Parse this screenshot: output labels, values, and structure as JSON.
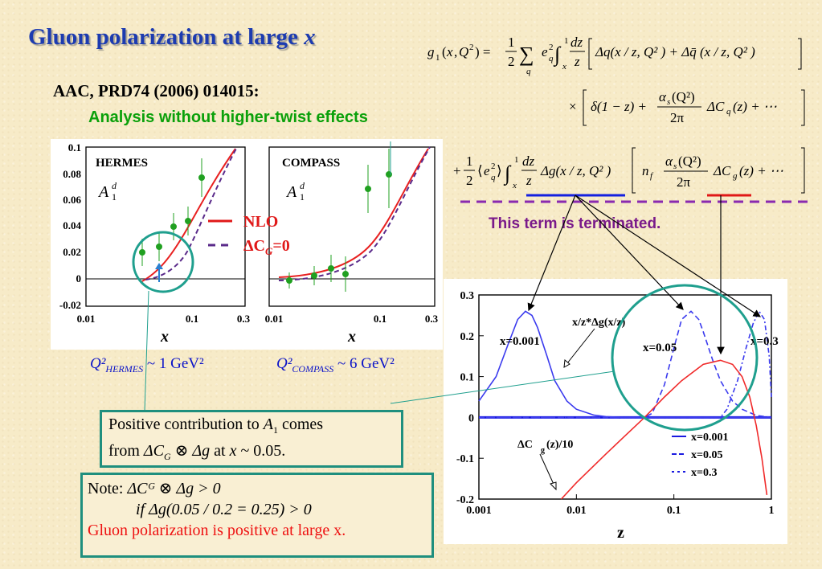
{
  "slide": {
    "title": "Gluon polarization at large",
    "title_var": "x",
    "reference": "AAC, PRD74 (2006) 014015:",
    "subtitle": "Analysis without higher-twist effects",
    "terminated": "This term is terminated."
  },
  "equation": {
    "g1_lhs": "g₁(x,Q²) =",
    "line1_rhs": "Δq(x/z,Q²) + Δq̄(x/z,Q²)",
    "line2_rhs": "× [ δ(1−z) + αₛ(Q²)/2π ΔC_q(z) + ··· ]",
    "line3_lhs": "+ ½⟨e_q²⟩∫ dz/z Δg(x/z,Q²)",
    "line3_rhs": "n_f αₛ(Q²)/2π ΔC_g(z) + ···"
  },
  "left_plot": {
    "y_ticks": [
      "0.1",
      "0.08",
      "0.06",
      "0.04",
      "0.02",
      "0",
      "-0.02"
    ],
    "hermes_label": "HERMES",
    "compass_label": "COMPASS",
    "a1_label": "A",
    "a1_sup": "d",
    "a1_sub": "1",
    "x_ticks_hermes": [
      "0.01",
      "0.1",
      "0.3"
    ],
    "x_ticks_compass": [
      "0.01",
      "0.1",
      "0.3"
    ],
    "x_label": "x",
    "legend_nlo": "NLO",
    "legend_dcg": "ΔC",
    "legend_dcg_sub": "G",
    "legend_dcg_val": "=0",
    "q2_hermes": "Q²",
    "q2_hermes_sub": "HERMES",
    "q2_hermes_val": "~ 1 GeV²",
    "q2_compass": "Q²",
    "q2_compass_sub": "COMPASS",
    "q2_compass_val": "~ 6 GeV²",
    "colors": {
      "nlo": "#e82020",
      "dcg0": "#5a2a8a",
      "data": "#20a020"
    }
  },
  "chart_data": {
    "type": "line",
    "x_scale": "log",
    "xlim": [
      0.001,
      1
    ],
    "ylim": [
      -0.2,
      0.3
    ],
    "x_ticks": [
      "0.001",
      "0.01",
      "0.1",
      "1"
    ],
    "y_ticks": [
      "0.3",
      "0.2",
      "0.1",
      "0",
      "-0.1",
      "-0.2"
    ],
    "xlabel": "z",
    "annotations": {
      "dg_curve": "x/z*Δg(x/z)",
      "dcg_curve": "ΔC",
      "dcg_sub": "g",
      "dcg_tail": "(z)/10",
      "x0001": "x=0.001",
      "x005": "x=0.05",
      "x03": "x=0.3"
    },
    "legend": [
      "x=0.001",
      "x=0.05",
      "x=0.3"
    ],
    "series": [
      {
        "name": "x=0.001",
        "style": "solid",
        "color": "#3a3aee",
        "x": [
          0.001,
          0.0015,
          0.002,
          0.0025,
          0.003,
          0.0035,
          0.004,
          0.005,
          0.006,
          0.008,
          0.01,
          0.015,
          0.02,
          0.03,
          0.05,
          0.1,
          1
        ],
        "y": [
          0.04,
          0.1,
          0.18,
          0.24,
          0.26,
          0.25,
          0.22,
          0.15,
          0.09,
          0.04,
          0.02,
          0.006,
          0.002,
          0.0,
          0.0,
          0.0,
          0.0
        ]
      },
      {
        "name": "x=0.05",
        "style": "dashed",
        "color": "#3a3aee",
        "x": [
          0.001,
          0.05,
          0.06,
          0.08,
          0.1,
          0.12,
          0.15,
          0.18,
          0.2,
          0.25,
          0.3,
          0.4,
          0.5,
          0.7,
          1
        ],
        "y": [
          0.0,
          0.0,
          0.01,
          0.08,
          0.17,
          0.24,
          0.26,
          0.24,
          0.21,
          0.14,
          0.09,
          0.04,
          0.02,
          0.005,
          0.0
        ],
        "level_at_z005": 0.0
      },
      {
        "name": "x=0.3",
        "style": "dashdot",
        "color": "#3a3aee",
        "x": [
          0.001,
          0.3,
          0.35,
          0.45,
          0.55,
          0.65,
          0.75,
          0.85,
          0.95,
          1
        ],
        "y": [
          0.0,
          0.0,
          0.02,
          0.09,
          0.17,
          0.23,
          0.26,
          0.24,
          0.15,
          0.05
        ]
      },
      {
        "name": "ΔCg(z)/10",
        "style": "solid",
        "color": "#f02a2a",
        "x": [
          0.007,
          0.01,
          0.02,
          0.03,
          0.05,
          0.08,
          0.12,
          0.2,
          0.3,
          0.4,
          0.5,
          0.6,
          0.7,
          0.8,
          0.9
        ],
        "y": [
          -0.2,
          -0.16,
          -0.09,
          -0.05,
          0.0,
          0.05,
          0.09,
          0.13,
          0.14,
          0.13,
          0.1,
          0.05,
          -0.02,
          -0.1,
          -0.19
        ]
      }
    ]
  },
  "notes": {
    "box1_line1": "Positive contribution to",
    "box1_a": "A",
    "box1_a_sub": "1",
    "box1_comes": "comes",
    "box1_line2a": "from",
    "box1_dcg": "ΔC",
    "box1_dcg_sub": "G",
    "box1_otimes": "⊗ Δg",
    "box1_at": "at",
    "box1_x": "x",
    "box1_val": "~ 0.05.",
    "box2_note": "Note:",
    "box2_line1": "ΔCᴳ ⊗ Δg > 0",
    "box2_line2": "if Δg(0.05 / 0.2 = 0.25) > 0",
    "box2_line3": "Gluon polarization is positive at large x."
  }
}
